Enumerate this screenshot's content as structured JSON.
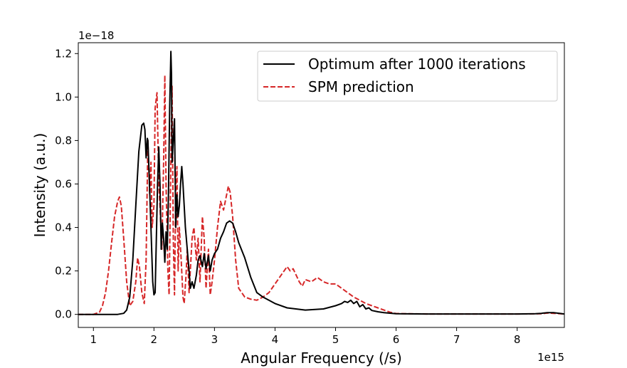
{
  "chart_data": {
    "type": "line",
    "xlabel": "Angular Frequency (/s)",
    "ylabel": "Intensity (a.u.)",
    "x_offset_text": "1e15",
    "y_offset_text": "1e−18",
    "xlim": [
      0.75,
      8.78
    ],
    "ylim": [
      -0.06,
      1.25
    ],
    "x_ticks": [
      1,
      2,
      3,
      4,
      5,
      6,
      7,
      8
    ],
    "x_tick_labels": [
      "1",
      "2",
      "3",
      "4",
      "5",
      "6",
      "7",
      "8"
    ],
    "y_ticks": [
      0.0,
      0.2,
      0.4,
      0.6,
      0.8,
      1.0,
      1.2
    ],
    "y_tick_labels": [
      "0.0",
      "0.2",
      "0.4",
      "0.6",
      "0.8",
      "1.0",
      "1.2"
    ],
    "legend": {
      "position": "top-right"
    },
    "series": [
      {
        "name": "Optimum after 1000 iterations",
        "color": "#000000",
        "dash": "solid",
        "x": [
          0.75,
          1.4,
          1.5,
          1.55,
          1.6,
          1.65,
          1.7,
          1.75,
          1.8,
          1.83,
          1.85,
          1.87,
          1.89,
          1.9,
          1.92,
          1.95,
          1.98,
          2.0,
          2.02,
          2.04,
          2.06,
          2.08,
          2.1,
          2.12,
          2.14,
          2.16,
          2.18,
          2.2,
          2.22,
          2.24,
          2.26,
          2.28,
          2.29,
          2.3,
          2.32,
          2.34,
          2.36,
          2.38,
          2.4,
          2.42,
          2.44,
          2.46,
          2.48,
          2.5,
          2.52,
          2.55,
          2.58,
          2.6,
          2.63,
          2.66,
          2.7,
          2.73,
          2.76,
          2.8,
          2.83,
          2.86,
          2.9,
          2.93,
          2.96,
          3.0,
          3.05,
          3.1,
          3.15,
          3.2,
          3.25,
          3.3,
          3.35,
          3.4,
          3.5,
          3.6,
          3.7,
          3.8,
          4.0,
          4.2,
          4.5,
          4.8,
          5.0,
          5.1,
          5.15,
          5.2,
          5.25,
          5.3,
          5.35,
          5.4,
          5.45,
          5.5,
          5.55,
          5.6,
          5.7,
          5.8,
          6.0,
          6.5,
          7.0,
          7.5,
          8.0,
          8.3,
          8.4,
          8.5,
          8.6,
          8.7,
          8.78
        ],
        "y": [
          0.0,
          0.0,
          0.005,
          0.02,
          0.08,
          0.25,
          0.5,
          0.75,
          0.87,
          0.88,
          0.85,
          0.72,
          0.81,
          0.8,
          0.65,
          0.4,
          0.15,
          0.09,
          0.1,
          0.35,
          0.6,
          0.77,
          0.6,
          0.3,
          0.42,
          0.35,
          0.24,
          0.38,
          0.3,
          0.55,
          0.95,
          1.21,
          1.1,
          0.7,
          0.8,
          0.9,
          0.4,
          0.55,
          0.45,
          0.5,
          0.6,
          0.68,
          0.6,
          0.5,
          0.4,
          0.3,
          0.2,
          0.12,
          0.15,
          0.12,
          0.18,
          0.25,
          0.27,
          0.22,
          0.28,
          0.21,
          0.27,
          0.2,
          0.25,
          0.28,
          0.3,
          0.35,
          0.38,
          0.42,
          0.43,
          0.42,
          0.38,
          0.33,
          0.26,
          0.17,
          0.1,
          0.08,
          0.05,
          0.03,
          0.02,
          0.025,
          0.04,
          0.05,
          0.06,
          0.055,
          0.065,
          0.05,
          0.06,
          0.035,
          0.045,
          0.025,
          0.03,
          0.018,
          0.012,
          0.008,
          0.003,
          0.002,
          0.002,
          0.002,
          0.002,
          0.003,
          0.005,
          0.008,
          0.008,
          0.005,
          0.002
        ]
      },
      {
        "name": "SPM prediction",
        "color": "#d62728",
        "dash": "dashed",
        "x": [
          0.75,
          1.0,
          1.1,
          1.15,
          1.2,
          1.25,
          1.3,
          1.35,
          1.4,
          1.43,
          1.46,
          1.5,
          1.55,
          1.6,
          1.65,
          1.7,
          1.73,
          1.76,
          1.8,
          1.84,
          1.87,
          1.9,
          1.93,
          1.95,
          1.97,
          2.0,
          2.02,
          2.05,
          2.08,
          2.1,
          2.13,
          2.16,
          2.18,
          2.2,
          2.23,
          2.25,
          2.28,
          2.3,
          2.32,
          2.34,
          2.36,
          2.38,
          2.4,
          2.42,
          2.45,
          2.48,
          2.5,
          2.53,
          2.55,
          2.58,
          2.6,
          2.63,
          2.66,
          2.7,
          2.73,
          2.76,
          2.8,
          2.83,
          2.86,
          2.9,
          2.93,
          2.96,
          3.0,
          3.05,
          3.1,
          3.15,
          3.2,
          3.23,
          3.26,
          3.3,
          3.35,
          3.4,
          3.5,
          3.6,
          3.7,
          3.8,
          3.9,
          4.0,
          4.1,
          4.2,
          4.25,
          4.3,
          4.35,
          4.4,
          4.45,
          4.5,
          4.6,
          4.7,
          4.8,
          4.9,
          5.0,
          5.1,
          5.2,
          5.3,
          5.4,
          5.5,
          5.6,
          5.7,
          5.8,
          5.9,
          6.0,
          6.5,
          7.0,
          7.5,
          8.0,
          8.4,
          8.5,
          8.6,
          8.78
        ],
        "y": [
          0.0,
          0.0,
          0.01,
          0.04,
          0.1,
          0.2,
          0.33,
          0.45,
          0.52,
          0.54,
          0.5,
          0.35,
          0.15,
          0.04,
          0.06,
          0.15,
          0.26,
          0.22,
          0.1,
          0.05,
          0.25,
          0.8,
          0.55,
          0.7,
          0.4,
          0.5,
          0.95,
          1.02,
          0.6,
          0.5,
          0.3,
          0.7,
          1.1,
          0.6,
          0.2,
          0.09,
          0.7,
          1.05,
          0.35,
          0.09,
          0.55,
          0.68,
          0.2,
          0.4,
          0.25,
          0.08,
          0.05,
          0.18,
          0.3,
          0.1,
          0.2,
          0.35,
          0.4,
          0.25,
          0.35,
          0.15,
          0.45,
          0.35,
          0.12,
          0.3,
          0.09,
          0.15,
          0.25,
          0.4,
          0.52,
          0.48,
          0.55,
          0.59,
          0.56,
          0.45,
          0.25,
          0.12,
          0.08,
          0.07,
          0.065,
          0.08,
          0.1,
          0.14,
          0.18,
          0.22,
          0.2,
          0.21,
          0.18,
          0.15,
          0.13,
          0.16,
          0.15,
          0.17,
          0.15,
          0.14,
          0.14,
          0.12,
          0.1,
          0.08,
          0.065,
          0.05,
          0.04,
          0.03,
          0.02,
          0.01,
          0.004,
          0.002,
          0.002,
          0.002,
          0.002,
          0.003,
          0.006,
          0.005,
          0.002
        ]
      }
    ]
  }
}
